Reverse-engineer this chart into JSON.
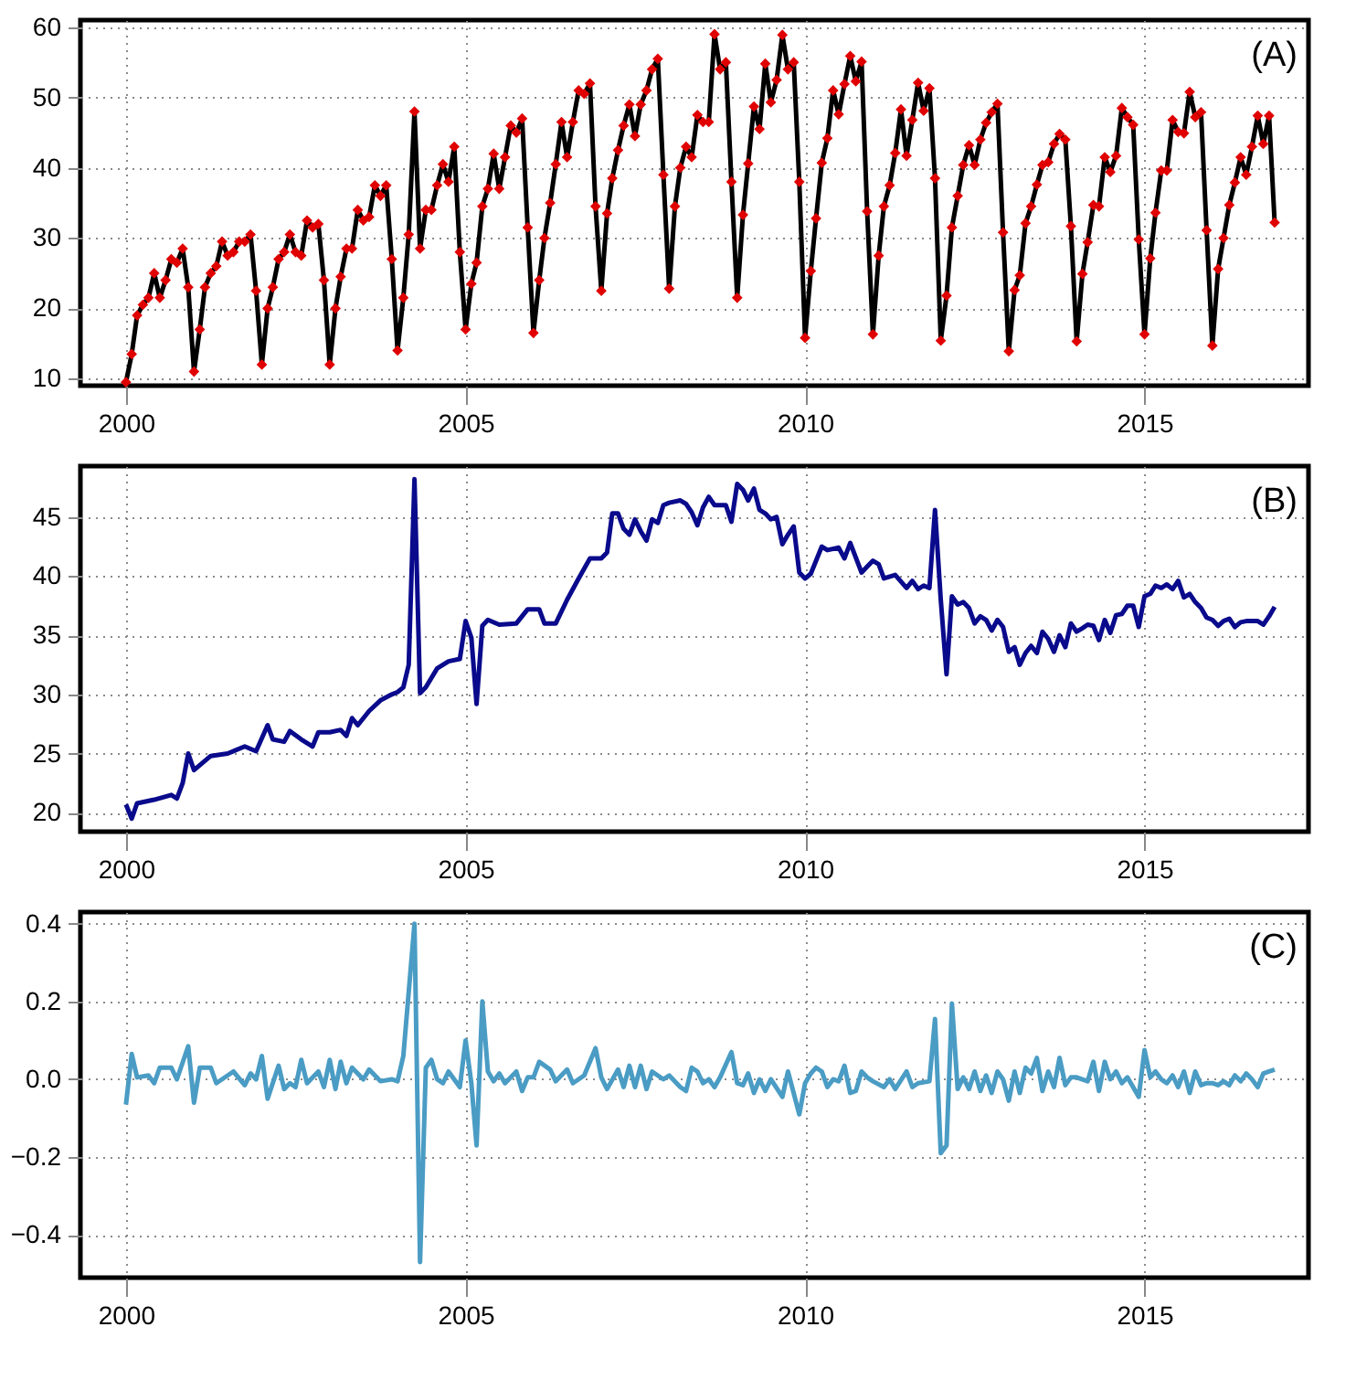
{
  "chart_data": [
    {
      "type": "line",
      "annotations": [
        "(A)"
      ],
      "grid": true,
      "xlim": [
        "1999-05",
        "2017-06"
      ],
      "xticks": [
        "2000",
        "2005",
        "2010",
        "2015"
      ],
      "ylim": [
        9,
        61
      ],
      "yticks": [
        10,
        20,
        30,
        40,
        50,
        60
      ],
      "x": [
        "2000-01",
        "2000-02",
        "2000-03",
        "2000-04",
        "2000-05",
        "2000-06",
        "2000-07",
        "2000-08",
        "2000-09",
        "2000-10",
        "2000-11",
        "2000-12",
        "2001-01",
        "2001-02",
        "2001-03",
        "2001-04",
        "2001-05",
        "2001-06",
        "2001-07",
        "2001-08",
        "2001-09",
        "2001-10",
        "2001-11",
        "2001-12",
        "2002-01",
        "2002-02",
        "2002-03",
        "2002-04",
        "2002-05",
        "2002-06",
        "2002-07",
        "2002-08",
        "2002-09",
        "2002-10",
        "2002-11",
        "2002-12",
        "2003-01",
        "2003-02",
        "2003-03",
        "2003-04",
        "2003-05",
        "2003-06",
        "2003-07",
        "2003-08",
        "2003-09",
        "2003-10",
        "2003-11",
        "2003-12",
        "2004-01",
        "2004-02",
        "2004-03",
        "2004-04",
        "2004-05",
        "2004-06",
        "2004-07",
        "2004-08",
        "2004-09",
        "2004-10",
        "2004-11",
        "2004-12",
        "2005-01",
        "2005-02",
        "2005-03",
        "2005-04",
        "2005-05",
        "2005-06",
        "2005-07",
        "2005-08",
        "2005-09",
        "2005-10",
        "2005-11",
        "2005-12",
        "2006-01",
        "2006-02",
        "2006-03",
        "2006-04",
        "2006-05",
        "2006-06",
        "2006-07",
        "2006-08",
        "2006-09",
        "2006-10",
        "2006-11",
        "2006-12",
        "2007-01",
        "2007-02",
        "2007-03",
        "2007-04",
        "2007-05",
        "2007-06",
        "2007-07",
        "2007-08",
        "2007-09",
        "2007-10",
        "2007-11",
        "2007-12",
        "2008-01",
        "2008-02",
        "2008-03",
        "2008-04",
        "2008-05",
        "2008-06",
        "2008-07",
        "2008-08",
        "2008-09",
        "2008-10",
        "2008-11",
        "2008-12",
        "2009-01",
        "2009-02",
        "2009-03",
        "2009-04",
        "2009-05",
        "2009-06",
        "2009-07",
        "2009-08",
        "2009-09",
        "2009-10",
        "2009-11",
        "2009-12",
        "2010-01",
        "2010-02",
        "2010-03",
        "2010-04",
        "2010-05",
        "2010-06",
        "2010-07",
        "2010-08",
        "2010-09",
        "2010-10",
        "2010-11",
        "2010-12",
        "2011-01",
        "2011-02",
        "2011-03",
        "2011-04",
        "2011-05",
        "2011-06",
        "2011-07",
        "2011-08",
        "2011-09",
        "2011-10",
        "2011-11",
        "2011-12",
        "2012-01",
        "2012-02",
        "2012-03",
        "2012-04",
        "2012-05",
        "2012-06",
        "2012-07",
        "2012-08",
        "2012-09",
        "2012-10",
        "2012-11",
        "2012-12",
        "2013-01",
        "2013-02",
        "2013-03",
        "2013-04",
        "2013-05",
        "2013-06",
        "2013-07",
        "2013-08",
        "2013-09",
        "2013-10",
        "2013-11",
        "2013-12",
        "2014-01",
        "2014-02",
        "2014-03",
        "2014-04",
        "2014-05",
        "2014-06",
        "2014-07",
        "2014-08",
        "2014-09",
        "2014-10",
        "2014-11",
        "2014-12",
        "2015-01",
        "2015-02",
        "2015-03",
        "2015-04",
        "2015-05",
        "2015-06",
        "2015-07",
        "2015-08",
        "2015-09",
        "2015-10",
        "2015-11",
        "2015-12",
        "2016-01",
        "2016-02",
        "2016-03",
        "2016-04",
        "2016-05",
        "2016-06",
        "2016-07",
        "2016-08",
        "2016-09",
        "2016-10",
        "2016-11",
        "2016-12"
      ],
      "series": [
        {
          "color": "#000000",
          "values": [
            9.5,
            13.5,
            19,
            20.5,
            21.5,
            25,
            21.5,
            24,
            27,
            26.5,
            28.5,
            23,
            11,
            17,
            23,
            25,
            26,
            29.5,
            27.5,
            28,
            29.5,
            29.5,
            30.5,
            22.5,
            12,
            20,
            23,
            27,
            28,
            30.5,
            28,
            27.5,
            32.5,
            31.5,
            32,
            24,
            12,
            20,
            24.5,
            28.5,
            28.5,
            34,
            32.5,
            33,
            37.5,
            36,
            37.5,
            27,
            14,
            21.5,
            30.5,
            48,
            28.5,
            34,
            34,
            37.5,
            40.5,
            38,
            43,
            28,
            17,
            23.5,
            26.5,
            34.5,
            37,
            42,
            37,
            41.5,
            46,
            45,
            47,
            31.5,
            16.5,
            24,
            30,
            35,
            40.5,
            46.5,
            41.5,
            46.5,
            51,
            50.5,
            52,
            34.5,
            22.5,
            33.5,
            38.5,
            42.5,
            46,
            49,
            44.5,
            49,
            51,
            54,
            55.5,
            39,
            22.8,
            34.5,
            40,
            43,
            41.5,
            47.5,
            46.5,
            46.5,
            59,
            54,
            55,
            38,
            21.5,
            33.3,
            40.6,
            48.7,
            45.5,
            54.8,
            49.3,
            52.5,
            58.9,
            54,
            55,
            38,
            15.8,
            25.3,
            32.8,
            40.7,
            44.2,
            51,
            47.6,
            51.9,
            55.9,
            52.3,
            55.1,
            33.8,
            16.3,
            27.5,
            34.5,
            37.5,
            42.1,
            48.3,
            41.7,
            46.8,
            52.1,
            48.1,
            51.3,
            38.5,
            15.4,
            21.8,
            31.5,
            36,
            40.4,
            43.2,
            40.4,
            44,
            46.4,
            47.9,
            49.1,
            30.8,
            13.9,
            22.6,
            24.7,
            32.1,
            34.5,
            37.6,
            40.4,
            40.8,
            43.4,
            44.8,
            44,
            31.7,
            15.3,
            24.9,
            29.4,
            34.7,
            34.5,
            41.5,
            39.4,
            41.7,
            48.5,
            47.2,
            46.1,
            29.8,
            16.3,
            27.1,
            33.6,
            39.6,
            39.6,
            46.8,
            45.1,
            44.9,
            50.8,
            47.2,
            47.9,
            31.1,
            14.7,
            25.6,
            30,
            34.7,
            37.9,
            41.5,
            39,
            43,
            47.4,
            43.4,
            47.4,
            32.2
          ]
        },
        {
          "type": "scatter",
          "color": "#e00000",
          "marker": "diamond",
          "values": [
            9.5,
            13.5,
            19,
            20.5,
            21.5,
            25,
            21.5,
            24,
            27,
            26.5,
            28.5,
            23,
            11,
            17,
            23,
            25,
            26,
            29.5,
            27.5,
            28,
            29.5,
            29.5,
            30.5,
            22.5,
            12,
            20,
            23,
            27,
            28,
            30.5,
            28,
            27.5,
            32.5,
            31.5,
            32,
            24,
            12,
            20,
            24.5,
            28.5,
            28.5,
            34,
            32.5,
            33,
            37.5,
            36,
            37.5,
            27,
            14,
            21.5,
            30.5,
            48,
            28.5,
            34,
            34,
            37.5,
            40.5,
            38,
            43,
            28,
            17,
            23.5,
            26.5,
            34.5,
            37,
            42,
            37,
            41.5,
            46,
            45,
            47,
            31.5,
            16.5,
            24,
            30,
            35,
            40.5,
            46.5,
            41.5,
            46.5,
            51,
            50.5,
            52,
            34.5,
            22.5,
            33.5,
            38.5,
            42.5,
            46,
            49,
            44.5,
            49,
            51,
            54,
            55.5,
            39,
            22.8,
            34.5,
            40,
            43,
            41.5,
            47.5,
            46.5,
            46.5,
            59,
            54,
            55,
            38,
            21.5,
            33.3,
            40.6,
            48.7,
            45.5,
            54.8,
            49.3,
            52.5,
            58.9,
            54,
            55,
            38,
            15.8,
            25.3,
            32.8,
            40.7,
            44.2,
            51,
            47.6,
            51.9,
            55.9,
            52.3,
            55.1,
            33.8,
            16.3,
            27.5,
            34.5,
            37.5,
            42.1,
            48.3,
            41.7,
            46.8,
            52.1,
            48.1,
            51.3,
            38.5,
            15.4,
            21.8,
            31.5,
            36,
            40.4,
            43.2,
            40.4,
            44,
            46.4,
            47.9,
            49.1,
            30.8,
            13.9,
            22.6,
            24.7,
            32.1,
            34.5,
            37.6,
            40.4,
            40.8,
            43.4,
            44.8,
            44,
            31.7,
            15.3,
            24.9,
            29.4,
            34.7,
            34.5,
            41.5,
            39.4,
            41.7,
            48.5,
            47.2,
            46.1,
            29.8,
            16.3,
            27.1,
            33.6,
            39.6,
            39.6,
            46.8,
            45.1,
            44.9,
            50.8,
            47.2,
            47.9,
            31.1,
            14.7,
            25.6,
            30,
            34.7,
            37.9,
            41.5,
            39,
            43,
            47.4,
            43.4,
            47.4,
            32.2
          ]
        }
      ]
    },
    {
      "type": "line",
      "annotations": [
        "(B)"
      ],
      "grid": true,
      "xlim": [
        "1999-05",
        "2017-06"
      ],
      "xticks": [
        "2000",
        "2005",
        "2010",
        "2015"
      ],
      "ylim": [
        18.4,
        49.3
      ],
      "yticks": [
        20,
        25,
        30,
        35,
        40,
        45
      ],
      "x": [
        "2000-01",
        "2000-02",
        "2000-03",
        "2000-06",
        "2000-09",
        "2000-10",
        "2000-11",
        "2000-12",
        "2001-01",
        "2001-04",
        "2001-07",
        "2001-10",
        "2001-12",
        "2002-02",
        "2002-03",
        "2002-05",
        "2002-06",
        "2002-08",
        "2002-10",
        "2002-11",
        "2003-01",
        "2003-03",
        "2003-04",
        "2003-05",
        "2003-06",
        "2003-08",
        "2003-10",
        "2003-12",
        "2004-01",
        "2004-02",
        "2004-03",
        "2004-04",
        "2004-05",
        "2004-06",
        "2004-08",
        "2004-10",
        "2004-12",
        "2005-01",
        "2005-02",
        "2005-03",
        "2005-04",
        "2005-05",
        "2005-07",
        "2005-10",
        "2005-12",
        "2006-02",
        "2006-03",
        "2006-05",
        "2006-07",
        "2006-09",
        "2006-11",
        "2006-12",
        "2007-01",
        "2007-02",
        "2007-03",
        "2007-04",
        "2007-05",
        "2007-06",
        "2007-07",
        "2007-08",
        "2007-09",
        "2007-10",
        "2007-11",
        "2007-12",
        "2008-01",
        "2008-03",
        "2008-04",
        "2008-05",
        "2008-06",
        "2008-07",
        "2008-08",
        "2008-09",
        "2008-11",
        "2008-12",
        "2009-01",
        "2009-02",
        "2009-03",
        "2009-04",
        "2009-05",
        "2009-06",
        "2009-07",
        "2009-08",
        "2009-09",
        "2009-10",
        "2009-11",
        "2009-12",
        "2010-01",
        "2010-02",
        "2010-04",
        "2010-05",
        "2010-07",
        "2010-08",
        "2010-09",
        "2010-11",
        "2010-12",
        "2011-01",
        "2011-02",
        "2011-03",
        "2011-05",
        "2011-07",
        "2011-08",
        "2011-09",
        "2011-10",
        "2011-11",
        "2011-12",
        "2012-01",
        "2012-02",
        "2012-03",
        "2012-04",
        "2012-05",
        "2012-06",
        "2012-07",
        "2012-08",
        "2012-09",
        "2012-10",
        "2012-11",
        "2012-12",
        "2013-01",
        "2013-02",
        "2013-03",
        "2013-04",
        "2013-05",
        "2013-06",
        "2013-07",
        "2013-08",
        "2013-09",
        "2013-10",
        "2013-11",
        "2013-12",
        "2014-01",
        "2014-02",
        "2014-03",
        "2014-04",
        "2014-05",
        "2014-06",
        "2014-07",
        "2014-08",
        "2014-09",
        "2014-10",
        "2014-11",
        "2014-12",
        "2015-01",
        "2015-02",
        "2015-03",
        "2015-04",
        "2015-05",
        "2015-06",
        "2015-07",
        "2015-08",
        "2015-09",
        "2015-10",
        "2015-11",
        "2015-12",
        "2016-01",
        "2016-02",
        "2016-03",
        "2016-04",
        "2016-05",
        "2016-06",
        "2016-07",
        "2016-09",
        "2016-10",
        "2016-11",
        "2016-12"
      ],
      "series": [
        {
          "color": "#0a0a8c",
          "values": [
            20.7,
            19.5,
            20.8,
            21.1,
            21.5,
            21.2,
            22.5,
            25.0,
            23.6,
            24.8,
            25.0,
            25.6,
            25.2,
            27.4,
            26.2,
            26.0,
            26.9,
            26.2,
            25.6,
            26.8,
            26.8,
            27.0,
            26.5,
            28.0,
            27.4,
            28.6,
            29.5,
            30.0,
            30.2,
            30.6,
            32.5,
            48.2,
            30.1,
            30.6,
            32.2,
            32.8,
            33.0,
            36.2,
            34.8,
            29.2,
            35.8,
            36.3,
            35.9,
            36.0,
            37.2,
            37.2,
            36.0,
            36.0,
            38.0,
            39.8,
            41.5,
            41.5,
            41.5,
            42.0,
            45.3,
            45.3,
            44.0,
            43.5,
            44.8,
            43.8,
            43.0,
            44.8,
            44.5,
            46.0,
            46.2,
            46.4,
            46.1,
            45.4,
            44.3,
            45.8,
            46.7,
            46.0,
            46.0,
            44.6,
            47.8,
            47.3,
            46.4,
            47.4,
            45.6,
            45.3,
            44.8,
            45.0,
            42.7,
            43.5,
            44.2,
            40.3,
            39.8,
            40.2,
            42.5,
            42.2,
            42.4,
            41.5,
            42.8,
            40.3,
            40.8,
            41.3,
            41.0,
            39.8,
            40.1,
            39.0,
            39.6,
            38.9,
            39.2,
            39.0,
            45.6,
            38.0,
            31.7,
            38.3,
            37.6,
            37.8,
            37.3,
            36.0,
            36.6,
            36.3,
            35.4,
            36.3,
            35.7,
            33.6,
            34.0,
            32.5,
            33.5,
            34.1,
            33.5,
            35.3,
            34.7,
            33.6,
            35.0,
            34.0,
            36.0,
            35.3,
            35.6,
            35.9,
            35.8,
            34.6,
            36.3,
            35.2,
            36.7,
            36.8,
            37.5,
            37.5,
            35.7,
            38.3,
            38.5,
            39.2,
            39.0,
            39.3,
            38.9,
            39.6,
            38.2,
            38.5,
            37.8,
            37.3,
            36.5,
            36.3,
            35.8,
            36.2,
            36.4,
            35.7,
            36.1,
            36.2,
            36.2,
            35.9,
            36.6,
            37.4
          ]
        }
      ]
    },
    {
      "type": "line",
      "annotations": [
        "(C)"
      ],
      "grid": true,
      "xlim": [
        "1999-05",
        "2017-06"
      ],
      "xticks": [
        "2000",
        "2005",
        "2010",
        "2015"
      ],
      "ylim": [
        -0.51,
        0.43
      ],
      "yticks": [
        {
          "value": -0.4,
          "label": "−0.4"
        },
        {
          "value": -0.2,
          "label": "−0.2"
        },
        {
          "value": 0,
          "label": "0.0"
        },
        {
          "value": 0.2,
          "label": "0.2"
        },
        {
          "value": 0.4,
          "label": "0.4"
        }
      ],
      "x": [
        "2000-01",
        "2000-02",
        "2000-03",
        "2000-05",
        "2000-06",
        "2000-07",
        "2000-09",
        "2000-10",
        "2000-12",
        "2001-01",
        "2001-02",
        "2001-04",
        "2001-05",
        "2001-08",
        "2001-10",
        "2001-11",
        "2001-12",
        "2002-01",
        "2002-02",
        "2002-04",
        "2002-05",
        "2002-06",
        "2002-07",
        "2002-08",
        "2002-09",
        "2002-11",
        "2002-12",
        "2003-01",
        "2003-02",
        "2003-03",
        "2003-04",
        "2003-05",
        "2003-07",
        "2003-08",
        "2003-10",
        "2003-12",
        "2004-01",
        "2004-02",
        "2004-04",
        "2004-05",
        "2004-06",
        "2004-07",
        "2004-08",
        "2004-09",
        "2004-10",
        "2004-12",
        "2005-01",
        "2005-02",
        "2005-03",
        "2005-04",
        "2005-05",
        "2005-06",
        "2005-07",
        "2005-08",
        "2005-10",
        "2005-11",
        "2005-12",
        "2006-01",
        "2006-02",
        "2006-04",
        "2006-05",
        "2006-07",
        "2006-08",
        "2006-10",
        "2006-12",
        "2007-01",
        "2007-02",
        "2007-04",
        "2007-05",
        "2007-06",
        "2007-07",
        "2007-08",
        "2007-09",
        "2007-10",
        "2007-12",
        "2008-01",
        "2008-03",
        "2008-04",
        "2008-05",
        "2008-06",
        "2008-07",
        "2008-08",
        "2008-09",
        "2008-10",
        "2008-12",
        "2009-01",
        "2009-02",
        "2009-03",
        "2009-04",
        "2009-05",
        "2009-06",
        "2009-07",
        "2009-09",
        "2009-10",
        "2009-12",
        "2010-01",
        "2010-02",
        "2010-03",
        "2010-04",
        "2010-05",
        "2010-06",
        "2010-07",
        "2010-08",
        "2010-09",
        "2010-10",
        "2010-11",
        "2010-12",
        "2011-01",
        "2011-03",
        "2011-04",
        "2011-05",
        "2011-07",
        "2011-08",
        "2011-09",
        "2011-11",
        "2011-12",
        "2012-01",
        "2012-02",
        "2012-03",
        "2012-04",
        "2012-05",
        "2012-06",
        "2012-07",
        "2012-08",
        "2012-09",
        "2012-10",
        "2012-11",
        "2012-12",
        "2013-01",
        "2013-02",
        "2013-03",
        "2013-04",
        "2013-05",
        "2013-06",
        "2013-07",
        "2013-08",
        "2013-09",
        "2013-10",
        "2013-11",
        "2013-12",
        "2014-01",
        "2014-03",
        "2014-04",
        "2014-05",
        "2014-06",
        "2014-07",
        "2014-08",
        "2014-09",
        "2014-10",
        "2014-12",
        "2015-01",
        "2015-02",
        "2015-03",
        "2015-04",
        "2015-05",
        "2015-06",
        "2015-07",
        "2015-08",
        "2015-09",
        "2015-10",
        "2015-11",
        "2015-12",
        "2016-01",
        "2016-02",
        "2016-03",
        "2016-04",
        "2016-05",
        "2016-06",
        "2016-07",
        "2016-08",
        "2016-09",
        "2016-10",
        "2016-11",
        "2016-12"
      ],
      "series": [
        {
          "color": "#4a9cc4",
          "values": [
            -0.065,
            0.065,
            0.005,
            0.01,
            -0.01,
            0.03,
            0.03,
            0.0,
            0.085,
            -0.06,
            0.03,
            0.03,
            -0.01,
            0.02,
            -0.015,
            0.015,
            0.0,
            0.06,
            -0.05,
            0.035,
            -0.025,
            -0.01,
            -0.02,
            0.05,
            -0.01,
            0.02,
            -0.02,
            0.05,
            -0.025,
            0.045,
            -0.01,
            0.03,
            0.0,
            0.025,
            -0.005,
            0.0,
            -0.005,
            0.06,
            0.4,
            -0.47,
            0.03,
            0.05,
            0.0,
            -0.01,
            0.02,
            -0.02,
            0.1,
            -0.01,
            -0.17,
            0.2,
            0.02,
            -0.005,
            0.015,
            -0.01,
            0.02,
            -0.03,
            0.005,
            0.005,
            0.045,
            0.025,
            -0.005,
            0.025,
            -0.01,
            0.01,
            0.08,
            0.005,
            -0.025,
            0.025,
            -0.02,
            0.035,
            -0.02,
            0.035,
            -0.025,
            0.02,
            0.0,
            0.01,
            -0.02,
            -0.03,
            0.03,
            0.02,
            -0.01,
            0.0,
            -0.02,
            0.005,
            0.07,
            -0.01,
            -0.015,
            0.015,
            -0.035,
            0.0,
            -0.03,
            0.0,
            -0.045,
            0.02,
            -0.09,
            -0.01,
            0.015,
            0.03,
            0.02,
            -0.02,
            0.0,
            -0.005,
            0.035,
            -0.035,
            -0.03,
            0.02,
            0.005,
            -0.005,
            -0.02,
            0.0,
            -0.025,
            0.02,
            -0.02,
            -0.01,
            -0.005,
            0.155,
            -0.19,
            -0.17,
            0.195,
            -0.025,
            0.005,
            -0.025,
            0.02,
            -0.03,
            0.01,
            -0.035,
            0.02,
            0.0,
            -0.055,
            0.02,
            -0.035,
            0.03,
            0.015,
            0.055,
            -0.03,
            0.02,
            -0.02,
            0.055,
            -0.015,
            0.005,
            0.005,
            -0.005,
            0.045,
            -0.03,
            0.045,
            0.0,
            0.02,
            -0.01,
            0.005,
            -0.045,
            0.075,
            0.005,
            0.02,
            0.0,
            -0.01,
            0.01,
            -0.02,
            0.02,
            -0.035,
            0.02,
            -0.015,
            -0.01,
            -0.01,
            -0.015,
            -0.005,
            -0.015,
            0.01,
            -0.005,
            0.015,
            0.0,
            -0.02,
            0.015,
            0.02,
            0.025
          ]
        }
      ]
    }
  ]
}
